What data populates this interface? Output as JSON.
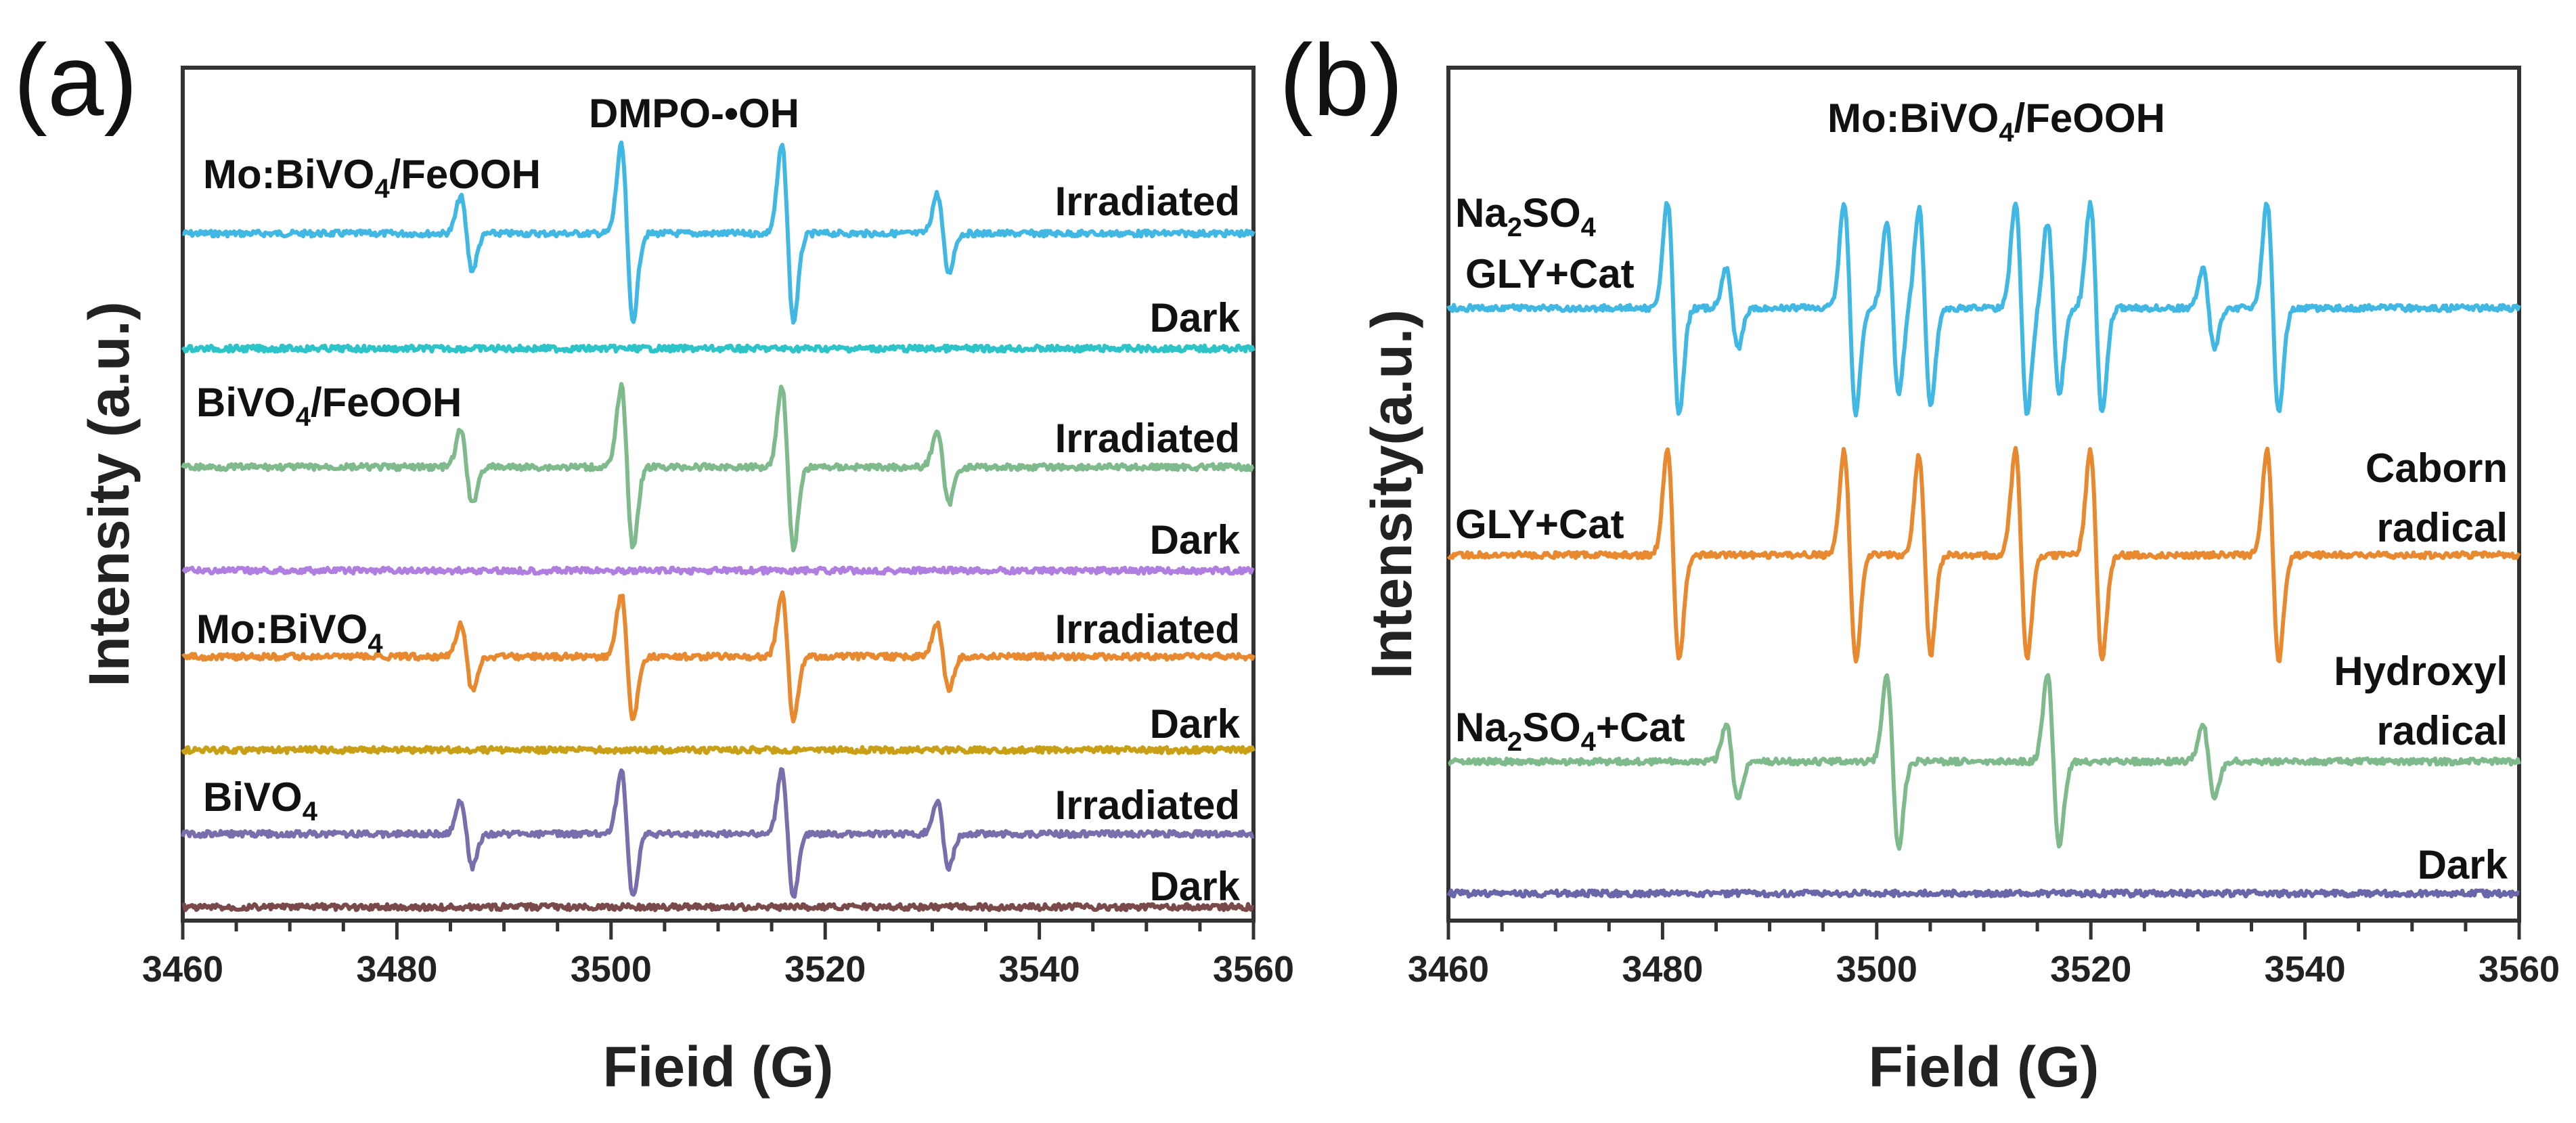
{
  "chart_data": [
    {
      "panel": "(a)",
      "type": "line",
      "title": "DMPO-•OH",
      "xlabel": "Fieid (G)",
      "ylabel": "Intensity (a.u.)",
      "xlim": [
        3460,
        3560
      ],
      "xticks": [
        3460,
        3480,
        3500,
        3520,
        3540,
        3560
      ],
      "peak_centers_G": [
        3486.5,
        3501.5,
        3516.5,
        3531
      ],
      "series": [
        {
          "name": "Mo:BiVO4/FeOOH",
          "state": "Irradiated",
          "color": "#41b8e3",
          "amplitudes": [
            0.42,
            1.0,
            1.0,
            0.45
          ]
        },
        {
          "name": "Mo:BiVO4/FeOOH",
          "state": "Dark",
          "color": "#2cc3c9",
          "amplitudes": [
            0,
            0,
            0,
            0
          ]
        },
        {
          "name": "BiVO4/FeOOH",
          "state": "Irradiated",
          "color": "#7fba8c",
          "amplitudes": [
            0.42,
            0.92,
            0.92,
            0.42
          ]
        },
        {
          "name": "BiVO4/FeOOH",
          "state": "Dark",
          "color": "#b07ee0",
          "amplitudes": [
            0,
            0,
            0,
            0
          ]
        },
        {
          "name": "Mo:BiVO4",
          "state": "Irradiated",
          "color": "#e8892f",
          "amplitudes": [
            0.38,
            0.72,
            0.72,
            0.38
          ]
        },
        {
          "name": "Mo:BiVO4",
          "state": "Dark",
          "color": "#c9a015",
          "amplitudes": [
            0,
            0,
            0,
            0
          ]
        },
        {
          "name": "BiVO4",
          "state": "Irradiated",
          "color": "#7a6dac",
          "amplitudes": [
            0.38,
            0.72,
            0.72,
            0.38
          ]
        },
        {
          "name": "BiVO4",
          "state": "Dark",
          "color": "#7a4a4a",
          "amplitudes": [
            0,
            0,
            0,
            0
          ]
        }
      ],
      "labels": {
        "title": "DMPO-•OH",
        "s1_main": "Mo:BiVO",
        "s1_sub": "4",
        "s1_tail": "/FeOOH",
        "s2_main": "BiVO",
        "s2_sub": "4",
        "s2_tail": "/FeOOH",
        "s3_main": "Mo:BiVO",
        "s3_sub": "4",
        "s3_tail": "",
        "s4_main": "BiVO",
        "s4_sub": "4",
        "s4_tail": "",
        "irradiated": "Irradiated",
        "dark": "Dark"
      }
    },
    {
      "panel": "(b)",
      "type": "line",
      "title": "Mo:BiVO4/FeOOH",
      "xlabel": "Field (G)",
      "ylabel": "Intensity(a.u.)",
      "xlim": [
        3460,
        3560
      ],
      "xticks": [
        3460,
        3480,
        3500,
        3520,
        3540,
        3560
      ],
      "series": [
        {
          "name": "Na2SO4 GLY+Cat",
          "color": "#41b8e3",
          "peaks_G": [
            3481,
            3486.5,
            3497.5,
            3501.5,
            3504.5,
            3513.5,
            3516.5,
            3520.5,
            3531,
            3537
          ],
          "amplitudes": [
            1.0,
            0.38,
            1.0,
            0.82,
            0.95,
            1.0,
            0.82,
            1.0,
            0.38,
            1.0
          ]
        },
        {
          "name": "GLY+Cat",
          "note": "Caborn radical",
          "color": "#e8892f",
          "peaks_G": [
            3481,
            3497.5,
            3504.5,
            3513.5,
            3520.5,
            3537
          ],
          "amplitudes": [
            1.0,
            1.0,
            0.95,
            1.0,
            1.0,
            1.0
          ]
        },
        {
          "name": "Na2SO4+Cat",
          "note": "Hydroxyl radical",
          "color": "#7fba8c",
          "peaks_G": [
            3486.5,
            3501.5,
            3516.5,
            3531
          ],
          "amplitudes": [
            0.36,
            0.82,
            0.82,
            0.36
          ]
        },
        {
          "name": "Dark",
          "color": "#6a66aa",
          "peaks_G": [],
          "amplitudes": []
        }
      ],
      "labels": {
        "title_main": "Mo:BiVO",
        "title_sub": "4",
        "title_tail": "/FeOOH",
        "na2so4_a": "Na",
        "na2so4_b": "2",
        "na2so4_c": "SO",
        "na2so4_d": "4",
        "gly_cat_1": "GLY+Cat",
        "gly_cat_2": "GLY+Cat",
        "caborn_1": "Caborn",
        "caborn_2": "radical",
        "nacat_a": "Na",
        "nacat_b": "2",
        "nacat_c": "SO",
        "nacat_d": "4",
        "nacat_e": "+Cat",
        "hydroxyl_1": "Hydroxyl",
        "hydroxyl_2": "radical",
        "dark": "Dark"
      }
    }
  ]
}
